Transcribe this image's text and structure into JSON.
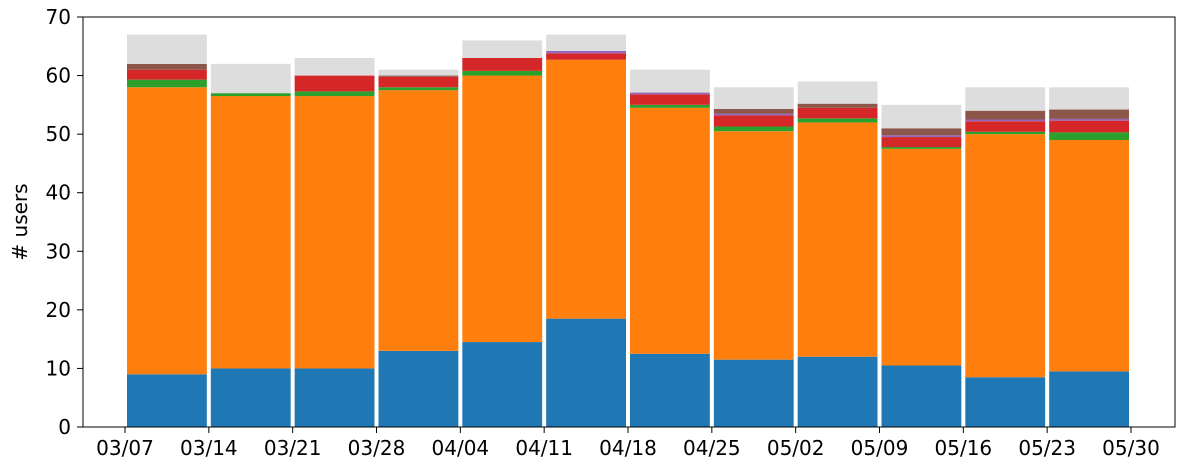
{
  "chart_data": {
    "type": "bar",
    "stacked": true,
    "ylabel": "# users",
    "xlabel": "",
    "ylim": [
      0,
      70
    ],
    "yticks": [
      0,
      10,
      20,
      30,
      40,
      50,
      60,
      70
    ],
    "xticks": [
      "03/07",
      "03/14",
      "03/21",
      "03/28",
      "04/04",
      "04/11",
      "04/18",
      "04/25",
      "05/02",
      "05/09",
      "05/16",
      "05/23",
      "05/30"
    ],
    "bar_starts": [
      "03/07",
      "03/14",
      "03/21",
      "03/28",
      "04/04",
      "04/11",
      "04/18",
      "04/25",
      "05/02",
      "05/09",
      "05/16",
      "05/23"
    ],
    "grid": false,
    "series": [
      {
        "color": "#1f77b4",
        "values": [
          9,
          10,
          10,
          13,
          14.5,
          18.5,
          12.5,
          11.5,
          12,
          10.5,
          8.5,
          9.5
        ]
      },
      {
        "color": "#ff7f0e",
        "values": [
          49,
          46.5,
          46.5,
          44.5,
          45.5,
          44.2,
          42,
          39,
          40,
          37,
          41.5,
          39.5
        ]
      },
      {
        "color": "#2ca02c",
        "values": [
          1.3,
          0.5,
          0.8,
          0.5,
          0.8,
          0,
          0.5,
          0.8,
          0.7,
          0.3,
          0.4,
          1.3
        ]
      },
      {
        "color": "#d62728",
        "values": [
          1.7,
          0,
          2.7,
          1.8,
          2.2,
          1.1,
          1.8,
          1.9,
          1.8,
          1.7,
          1.8,
          2.0
        ]
      },
      {
        "color": "#9467bd",
        "values": [
          0,
          0,
          0,
          0,
          0,
          0.4,
          0.3,
          0.3,
          0,
          0.3,
          0.3,
          0.3
        ]
      },
      {
        "color": "#8c564b",
        "values": [
          1,
          0,
          0,
          0.2,
          0,
          0,
          0,
          0.8,
          0.7,
          1.2,
          1.5,
          1.6
        ]
      },
      {
        "color": "#dddddd",
        "values": [
          5,
          5,
          3,
          1,
          3,
          2.8,
          3.9,
          3.7,
          3.8,
          4.0,
          4.0,
          3.8
        ]
      }
    ]
  }
}
